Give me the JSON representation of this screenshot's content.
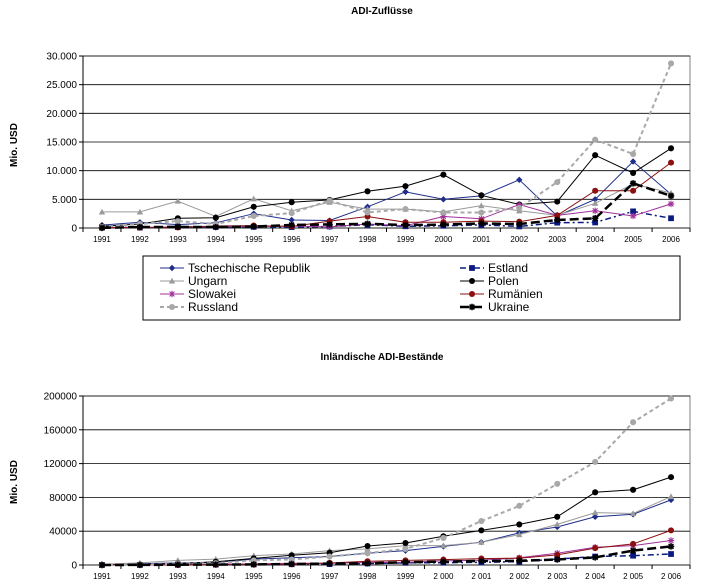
{
  "colors": {
    "tschechien": "#1f2e8c",
    "estland": "#0b1a80",
    "ungarn": "#9a9a9a",
    "polen": "#000000",
    "slowakei": "#a0309a",
    "rumaenien": "#8b1010",
    "russland": "#a8a8a8",
    "ukraine": "#000000"
  },
  "chart_data": [
    {
      "type": "line",
      "title": "ADI-Zuflüsse",
      "ylabel": "Mio. USD",
      "xlabel": "",
      "ylim": [
        0,
        30000
      ],
      "grid": true,
      "legend_position": "bottom",
      "x": [
        "1991",
        "1992",
        "1993",
        "1994",
        "1995",
        "1996",
        "1997",
        "1998",
        "1999",
        "2000",
        "2001",
        "2002",
        "2003",
        "2004",
        "2005",
        "2006"
      ],
      "y_ticks": [
        "0",
        "5.000",
        "10.000",
        "15.000",
        "20.000",
        "25.000",
        "30.000"
      ],
      "y_tick_values": [
        0,
        5000,
        10000,
        15000,
        20000,
        25000,
        30000
      ],
      "series": [
        {
          "name": "Tschechische Republik",
          "key": "tschechien",
          "marker": "diamond",
          "dash": "solid",
          "values": [
            500,
            1000,
            600,
            900,
            2500,
            1400,
            1300,
            3700,
            6300,
            5000,
            5600,
            8400,
            2100,
            5000,
            11600,
            5900
          ]
        },
        {
          "name": "Estland",
          "key": "estland",
          "marker": "square",
          "dash": "dashdot",
          "values": [
            80,
            80,
            160,
            200,
            200,
            150,
            270,
            580,
            300,
            390,
            540,
            280,
            930,
            970,
            2900,
            1700
          ]
        },
        {
          "name": "Ungarn",
          "key": "ungarn",
          "marker": "triangle",
          "dash": "solid",
          "values": [
            2800,
            2800,
            4700,
            2000,
            5100,
            3000,
            4500,
            3300,
            3300,
            2800,
            3900,
            3000,
            2200,
            4300,
            7700,
            6100
          ]
        },
        {
          "name": "Polen",
          "key": "polen",
          "marker": "circle",
          "dash": "solid",
          "values": [
            300,
            700,
            1700,
            1800,
            3700,
            4500,
            4900,
            6400,
            7300,
            9300,
            5700,
            4100,
            4600,
            12700,
            9600,
            13900
          ]
        },
        {
          "name": "Slowakei",
          "key": "slowakei",
          "marker": "star",
          "dash": "solid",
          "values": [
            100,
            100,
            200,
            250,
            250,
            350,
            200,
            700,
            400,
            2000,
            1600,
            4100,
            2200,
            3000,
            2100,
            4200
          ]
        },
        {
          "name": "Rumänien",
          "key": "rumaenien",
          "marker": "circle",
          "dash": "solid",
          "values": [
            40,
            80,
            100,
            350,
            420,
            260,
            1200,
            2000,
            1000,
            1000,
            1200,
            1100,
            2200,
            6500,
            6500,
            11400
          ]
        },
        {
          "name": "Russland",
          "key": "russland",
          "marker": "circle",
          "dash": "dashed",
          "values": [
            200,
            700,
            1200,
            700,
            2100,
            2600,
            4800,
            2700,
            3300,
            2700,
            2700,
            3500,
            8000,
            15400,
            12900,
            28700
          ]
        },
        {
          "name": "Ukraine",
          "key": "ukraine",
          "marker": "asterisk",
          "dash": "longdash",
          "values": [
            20,
            170,
            200,
            160,
            270,
            520,
            620,
            740,
            500,
            600,
            800,
            690,
            1400,
            1700,
            7800,
            5600
          ]
        }
      ]
    },
    {
      "type": "line",
      "title": "Inländische ADI-Bestände",
      "ylabel": "Mio. USD",
      "xlabel": "",
      "ylim": [
        0,
        200000
      ],
      "grid": true,
      "legend_position": "none",
      "x": [
        "1991",
        "1992",
        "1993",
        "1994",
        "1995",
        "1996",
        "1997",
        "1998",
        "1999",
        "2 000",
        "2 001",
        "2 002",
        "2 003",
        "2 004",
        "2 005",
        "2 006"
      ],
      "y_ticks": [
        "0",
        "40000",
        "80000",
        "120000",
        "160000",
        "200000"
      ],
      "y_tick_values": [
        0,
        40000,
        80000,
        120000,
        160000,
        200000
      ],
      "series": [
        {
          "name": "Tschechische Republik",
          "key": "tschechien",
          "marker": "diamond",
          "dash": "solid",
          "values": [
            500,
            1500,
            2500,
            3000,
            7000,
            8500,
            10000,
            14000,
            17000,
            22000,
            27000,
            38000,
            45000,
            57000,
            60000,
            77000
          ]
        },
        {
          "name": "Estland",
          "key": "estland",
          "marker": "square",
          "dash": "dashdot",
          "values": [
            50,
            100,
            300,
            500,
            700,
            900,
            1100,
            1800,
            2600,
            2700,
            3200,
            4000,
            7000,
            10000,
            11000,
            13000
          ]
        },
        {
          "name": "Ungarn",
          "key": "ungarn",
          "marker": "triangle",
          "dash": "solid",
          "values": [
            1000,
            2500,
            5500,
            7000,
            11000,
            13000,
            17000,
            19000,
            23000,
            23000,
            27000,
            36000,
            48000,
            62000,
            61000,
            81000
          ]
        },
        {
          "name": "Polen",
          "key": "polen",
          "marker": "circle",
          "dash": "solid",
          "values": [
            200,
            600,
            1700,
            3800,
            7800,
            11500,
            14600,
            22500,
            26000,
            34000,
            41000,
            48000,
            57000,
            86000,
            89000,
            104000
          ]
        },
        {
          "name": "Slowakei",
          "key": "slowakei",
          "marker": "star",
          "dash": "solid",
          "values": [
            50,
            200,
            600,
            900,
            1300,
            2000,
            2100,
            2900,
            3200,
            4800,
            5600,
            8500,
            14000,
            21000,
            23000,
            29000
          ]
        },
        {
          "name": "Rumänien",
          "key": "rumaenien",
          "marker": "circle",
          "dash": "solid",
          "values": [
            40,
            100,
            200,
            500,
            800,
            1100,
            2400,
            4400,
            5400,
            6400,
            7600,
            8000,
            12000,
            20000,
            25000,
            41000
          ]
        },
        {
          "name": "Russland",
          "key": "russland",
          "marker": "circle",
          "dash": "dashed",
          "values": [
            200,
            500,
            1500,
            2200,
            5500,
            6500,
            10000,
            14000,
            19000,
            32000,
            52000,
            70000,
            96000,
            122000,
            169000,
            197000
          ]
        },
        {
          "name": "Ukraine",
          "key": "ukraine",
          "marker": "asterisk",
          "dash": "longdash",
          "values": [
            0,
            100,
            300,
            500,
            700,
            1200,
            1700,
            2000,
            3300,
            3900,
            4800,
            5000,
            6500,
            9000,
            17000,
            22000
          ]
        }
      ]
    }
  ]
}
